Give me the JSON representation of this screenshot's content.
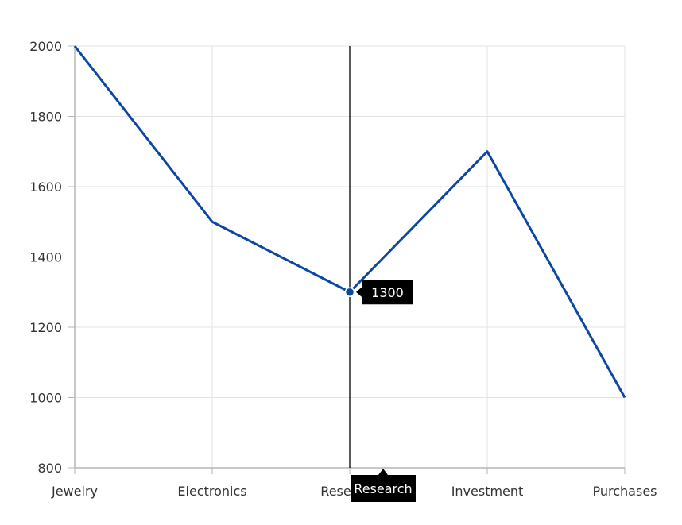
{
  "chart_data": {
    "type": "line",
    "categories": [
      "Jewelry",
      "Electronics",
      "Research",
      "Investment",
      "Purchases"
    ],
    "series": [
      {
        "values": [
          2000,
          1500,
          1300,
          1700,
          1000
        ]
      }
    ],
    "ylim": [
      800,
      2000
    ],
    "yticks": [
      800,
      1000,
      1200,
      1400,
      1600,
      1800,
      2000
    ],
    "grid": true,
    "line_color": "#0D47A1",
    "crosshair_category": "Research",
    "tooltip": {
      "value": "1300",
      "category": "Research"
    }
  }
}
